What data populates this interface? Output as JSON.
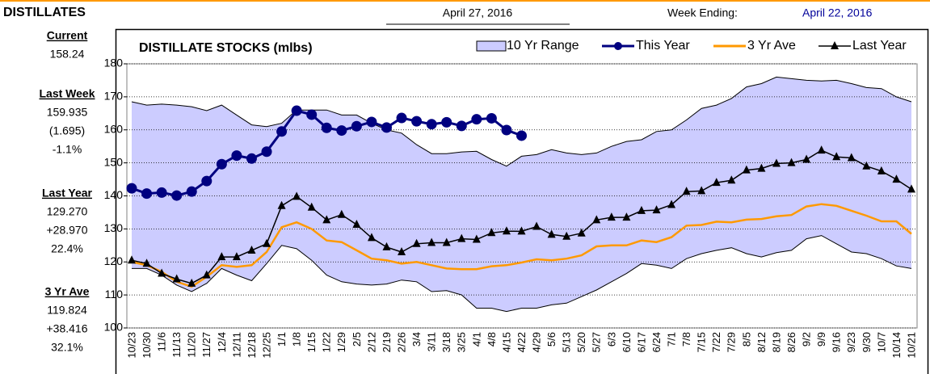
{
  "header": {
    "title": "DISTILLATES",
    "date": "April 27, 2016",
    "week_ending_label": "Week Ending:",
    "week_ending": "April 22, 2016"
  },
  "sidebar": [
    {
      "label": "Current",
      "lines": [
        "158.24"
      ]
    },
    {
      "label": "Last Week",
      "lines": [
        "159.935",
        "(1.695)",
        "-1.1%"
      ]
    },
    {
      "label": "Last Year",
      "lines": [
        "129.270",
        "+28.970",
        "22.4%"
      ]
    },
    {
      "label": "3 Yr Ave",
      "lines": [
        "119.824",
        "+38.416",
        "32.1%"
      ]
    }
  ],
  "chart_data": {
    "type": "line",
    "title": "DISTILLATE STOCKS (mlbs)",
    "categories": [
      "10/23",
      "10/30",
      "11/6",
      "11/13",
      "11/20",
      "11/27",
      "12/4",
      "12/11",
      "12/18",
      "12/25",
      "1/1",
      "1/8",
      "1/15",
      "1/22",
      "1/29",
      "2/5",
      "2/12",
      "2/19",
      "2/26",
      "3/4",
      "3/11",
      "3/18",
      "3/25",
      "4/1",
      "4/8",
      "4/15",
      "4/22",
      "4/29",
      "5/6",
      "5/13",
      "5/20",
      "5/27",
      "6/3",
      "6/10",
      "6/17",
      "6/24",
      "7/1",
      "7/8",
      "7/15",
      "7/22",
      "7/29",
      "8/5",
      "8/12",
      "8/19",
      "8/26",
      "9/2",
      "9/9",
      "9/16",
      "9/23",
      "9/30",
      "10/7",
      "10/14",
      "10/21"
    ],
    "series": [
      {
        "name": "10 Yr Range",
        "color": "#ccccff",
        "values": [
          168.5,
          167.5,
          167.8,
          167.5,
          167,
          165.8,
          167.5,
          164.5,
          161.5,
          161,
          162,
          166,
          166,
          166,
          164.5,
          164.5,
          162,
          160,
          159,
          155.5,
          152.8,
          152.8,
          153.3,
          153.5,
          151,
          149,
          152,
          152.5,
          154,
          153,
          152.5,
          153,
          155,
          156.5,
          157,
          159.5,
          160,
          163,
          166.5,
          167.5,
          169.5,
          173,
          174,
          176,
          175.5,
          175,
          174.8,
          175,
          174,
          172.8,
          172.5,
          170,
          168.5
        ],
        "low": [
          118,
          118,
          116,
          113,
          111,
          113.5,
          118,
          116,
          114.3,
          119.5,
          125,
          124,
          120.5,
          116,
          114,
          113.3,
          113,
          113.3,
          114.5,
          114,
          111,
          111.3,
          110,
          106,
          106,
          105,
          106,
          106,
          107,
          107.5,
          109.5,
          111.5,
          114,
          116.5,
          119.5,
          119,
          118,
          121,
          122.5,
          123.5,
          124.3,
          122.5,
          121.5,
          122.8,
          123.5,
          127,
          128,
          125.5,
          123,
          122.5,
          121,
          118.8,
          118
        ]
      },
      {
        "name": "This Year",
        "color": "#000080",
        "values": [
          142.3,
          140.7,
          141.0,
          140.1,
          141.3,
          144.5,
          149.6,
          152.2,
          151.3,
          153.4,
          159.5,
          165.8,
          164.6,
          160.6,
          159.8,
          161.1,
          162.4,
          160.7,
          163.6,
          162.6,
          161.7,
          162.3,
          161.2,
          163.2,
          163.5,
          159.935,
          158.24,
          null,
          null,
          null,
          null,
          null,
          null,
          null,
          null,
          null,
          null,
          null,
          null,
          null,
          null,
          null,
          null,
          null,
          null,
          null,
          null,
          null,
          null,
          null,
          null,
          null,
          null
        ]
      },
      {
        "name": "3 Yr Ave",
        "color": "#ff9900",
        "values": [
          120,
          119,
          117,
          114,
          112.5,
          115.5,
          119,
          118.5,
          119,
          123,
          130.5,
          132,
          130,
          126.5,
          126,
          123.5,
          121,
          120.5,
          119.5,
          120,
          119,
          118,
          117.8,
          117.8,
          118.7,
          119,
          119.824,
          120.8,
          120.5,
          121,
          122,
          124.7,
          125,
          125,
          126.5,
          126,
          127.5,
          131,
          131.2,
          132.2,
          132,
          132.8,
          133,
          133.8,
          134.2,
          136.8,
          137.5,
          137,
          135.5,
          134,
          132.3,
          132.3,
          128.5
        ]
      },
      {
        "name": "Last Year",
        "color": "#000000",
        "values": [
          120.5,
          119.5,
          116.5,
          114.8,
          113.5,
          116,
          121.5,
          121.5,
          123.5,
          125.5,
          137,
          139.8,
          136.5,
          132.7,
          134.3,
          131.3,
          127.3,
          124.5,
          123,
          125.5,
          125.8,
          125.8,
          127,
          126.8,
          128.8,
          129.3,
          129.27,
          130.7,
          128.3,
          127.7,
          128.7,
          132.7,
          133.5,
          133.5,
          135.5,
          135.7,
          137.3,
          141.3,
          141.5,
          144,
          144.7,
          147.8,
          148.3,
          149.8,
          150,
          151,
          153.8,
          151.8,
          151.5,
          149,
          147.5,
          145,
          142
        ]
      }
    ],
    "ylim": [
      100,
      180
    ],
    "yticks": [
      100,
      110,
      120,
      130,
      140,
      150,
      160,
      170,
      180
    ],
    "grid": true
  }
}
